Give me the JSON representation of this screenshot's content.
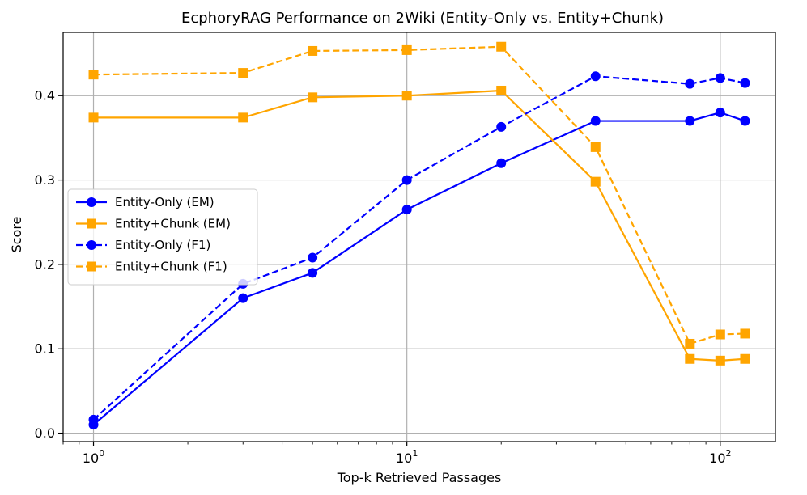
{
  "chart_data": {
    "type": "line",
    "title": "EcphoryRAG Performance on 2Wiki (Entity-Only vs. Entity+Chunk)",
    "xlabel": "Top-k Retrieved Passages",
    "ylabel": "Score",
    "xscale": "log",
    "xlim": [
      0.8,
      150
    ],
    "ylim": [
      -0.01,
      0.475
    ],
    "grid": true,
    "x": [
      1,
      3,
      5,
      10,
      20,
      40,
      80,
      100,
      120
    ],
    "x_ticks": [
      {
        "value": 1,
        "base": "10",
        "exp": "0"
      },
      {
        "value": 10,
        "base": "10",
        "exp": "1"
      },
      {
        "value": 100,
        "base": "10",
        "exp": "2"
      }
    ],
    "y_ticks": [
      {
        "value": 0.0,
        "label": "0.0"
      },
      {
        "value": 0.1,
        "label": "0.1"
      },
      {
        "value": 0.2,
        "label": "0.2"
      },
      {
        "value": 0.3,
        "label": "0.3"
      },
      {
        "value": 0.4,
        "label": "0.4"
      }
    ],
    "legend_position": "center-left",
    "series": [
      {
        "name": "Entity-Only (EM)",
        "color": "#0000ff",
        "marker": "circle",
        "linestyle": "solid",
        "values": [
          0.01,
          0.16,
          0.19,
          0.265,
          0.32,
          0.37,
          0.37,
          0.38,
          0.37
        ]
      },
      {
        "name": "Entity+Chunk (EM)",
        "color": "#ffa500",
        "marker": "square",
        "linestyle": "solid",
        "values": [
          0.374,
          0.374,
          0.398,
          0.4,
          0.406,
          0.298,
          0.088,
          0.086,
          0.088
        ]
      },
      {
        "name": "Entity-Only (F1)",
        "color": "#0000ff",
        "marker": "circle",
        "linestyle": "dashed",
        "values": [
          0.016,
          0.177,
          0.208,
          0.3,
          0.363,
          0.423,
          0.414,
          0.421,
          0.415
        ]
      },
      {
        "name": "Entity+Chunk (F1)",
        "color": "#ffa500",
        "marker": "square",
        "linestyle": "dashed",
        "values": [
          0.425,
          0.427,
          0.453,
          0.454,
          0.458,
          0.339,
          0.106,
          0.117,
          0.118
        ]
      }
    ]
  }
}
